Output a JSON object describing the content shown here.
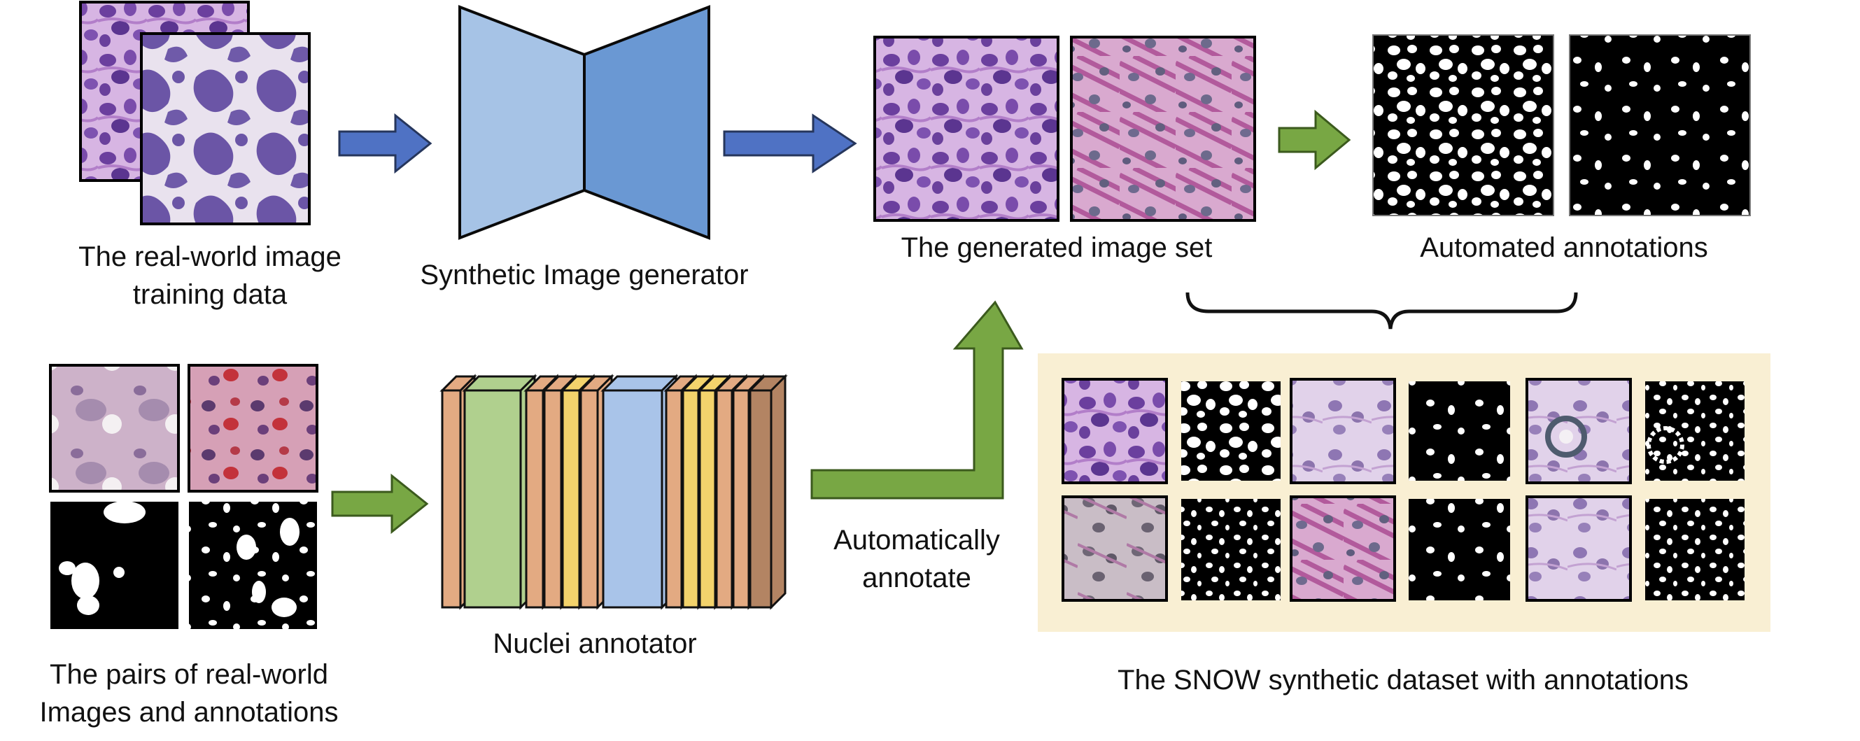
{
  "labels": {
    "training_data": [
      "The real-world image",
      "training data"
    ],
    "generator": "Synthetic Image generator",
    "generated_set": "The generated image set",
    "automated_annotations": "Automated annotations",
    "pairs": [
      "The pairs of real-world",
      "Images and annotations"
    ],
    "annotator": "Nuclei annotator",
    "annotate_step": [
      "Automatically",
      "annotate"
    ],
    "snow_dataset": "The SNOW synthetic dataset with annotations"
  },
  "colors": {
    "arrow_blue": "#4f72c4",
    "arrow_green": "#78a744",
    "generator_left": "#a6c3e6",
    "generator_right": "#6a98d3",
    "panel_bg": "#f9efd3",
    "layer_orange": "#e3aa82",
    "layer_yellow": "#f3d36c",
    "layer_green": "#b0d08e",
    "layer_blue": "#a9c4e9",
    "layer_brown": "#b38463",
    "tissue_purple": "#8a5fb0",
    "tissue_pink": "#c88ab0",
    "mask_black": "#000000"
  }
}
